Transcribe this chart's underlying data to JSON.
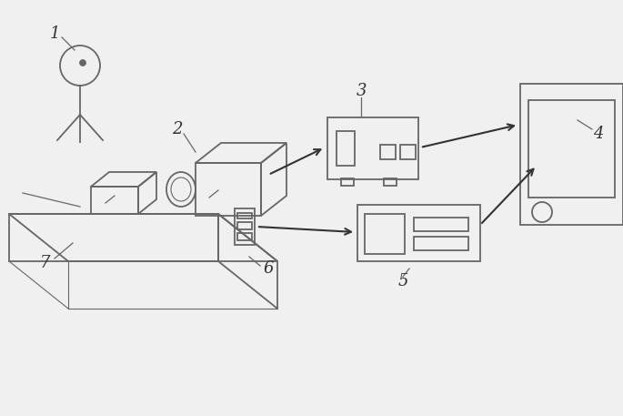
{
  "bg_color": "#f0f0f0",
  "line_color": "#666666",
  "line_width": 1.3,
  "arrow_color": "#333333",
  "label_color": "#333333",
  "label_fontsize": 13,
  "fig_width": 6.85,
  "fig_height": 4.57
}
